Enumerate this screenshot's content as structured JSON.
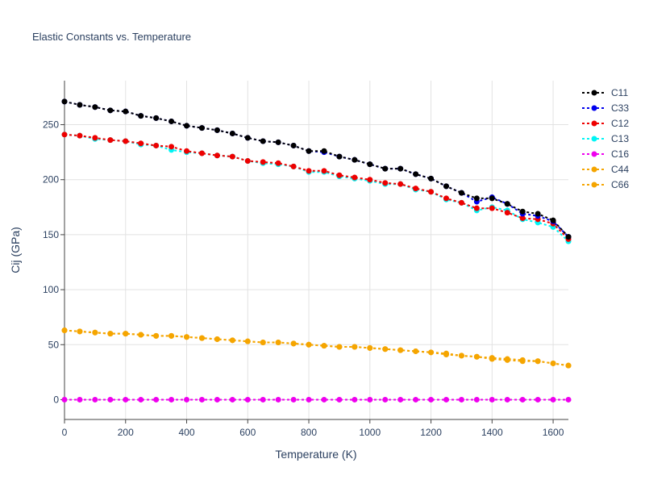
{
  "chart_data": {
    "type": "line",
    "title": "Elastic Constants vs. Temperature",
    "xlabel": "Temperature (K)",
    "ylabel": "Cij (GPa)",
    "xlim": [
      0,
      1650
    ],
    "ylim": [
      -18,
      290
    ],
    "xticks": [
      0,
      200,
      400,
      600,
      800,
      1000,
      1200,
      1400,
      1600
    ],
    "yticks": [
      0,
      50,
      100,
      150,
      200,
      250
    ],
    "grid": true,
    "legend_position": "right",
    "x": [
      0,
      50,
      100,
      150,
      200,
      250,
      300,
      350,
      400,
      450,
      500,
      550,
      600,
      650,
      700,
      750,
      800,
      850,
      900,
      950,
      1000,
      1050,
      1100,
      1150,
      1200,
      1250,
      1300,
      1350,
      1400,
      1450,
      1500,
      1550,
      1600,
      1650
    ],
    "series": [
      {
        "name": "C11",
        "color": "#000000",
        "values": [
          271,
          268,
          266,
          263,
          262,
          258,
          256,
          253,
          249,
          247,
          245,
          242,
          238,
          235,
          234,
          231,
          226,
          226,
          221,
          218,
          214,
          210,
          210,
          205,
          201,
          194,
          188,
          183,
          183,
          178,
          171,
          169,
          163,
          148
        ]
      },
      {
        "name": "C33",
        "color": "#0000ee",
        "values": [
          271,
          268,
          266,
          263,
          262,
          258,
          256,
          253,
          249,
          247,
          245,
          242,
          238,
          235,
          234,
          231,
          226,
          225,
          221,
          218,
          214,
          210,
          210,
          205,
          201,
          194,
          188,
          180,
          184,
          178,
          169,
          167,
          162,
          148
        ]
      },
      {
        "name": "C12",
        "color": "#ee0000",
        "values": [
          241,
          240,
          238,
          236,
          235,
          233,
          231,
          230,
          226,
          224,
          222,
          221,
          217,
          216,
          215,
          212,
          208,
          208,
          204,
          202,
          200,
          197,
          196,
          192,
          189,
          183,
          179,
          174,
          174,
          170,
          165,
          164,
          160,
          146
        ]
      },
      {
        "name": "C13",
        "color": "#00f5f5",
        "values": [
          241,
          240,
          237,
          236,
          235,
          232,
          231,
          227,
          225,
          224,
          222,
          221,
          217,
          215,
          214,
          212,
          207,
          207,
          203,
          201,
          199,
          196,
          196,
          191,
          189,
          182,
          179,
          172,
          175,
          172,
          164,
          161,
          157,
          144
        ]
      },
      {
        "name": "C16",
        "color": "#ee00ee",
        "values": [
          0,
          0,
          0,
          0,
          0,
          0,
          0,
          0,
          0,
          0,
          0,
          0,
          0,
          0,
          0,
          0,
          0,
          0,
          0,
          0,
          0,
          0,
          0,
          0,
          0,
          0,
          0,
          0,
          0,
          0,
          0,
          0,
          0,
          0
        ]
      },
      {
        "name": "C44",
        "color": "#f5a500",
        "values": [
          63,
          62,
          61,
          60,
          60,
          59,
          58,
          58,
          57,
          56,
          55,
          54,
          53,
          52,
          52,
          51,
          50,
          49,
          48,
          48,
          47,
          46,
          45,
          44,
          43,
          42,
          40,
          39,
          38,
          37,
          36,
          35,
          33,
          31
        ]
      },
      {
        "name": "C66",
        "color": "#f5a500",
        "values": [
          63,
          62,
          61,
          60,
          60,
          59,
          58,
          58,
          57,
          56,
          55,
          54,
          53,
          52,
          52,
          51,
          50,
          49,
          48,
          48,
          47,
          46,
          45,
          44,
          43,
          41,
          40,
          39,
          37,
          36,
          35,
          35,
          33,
          31
        ]
      }
    ]
  }
}
